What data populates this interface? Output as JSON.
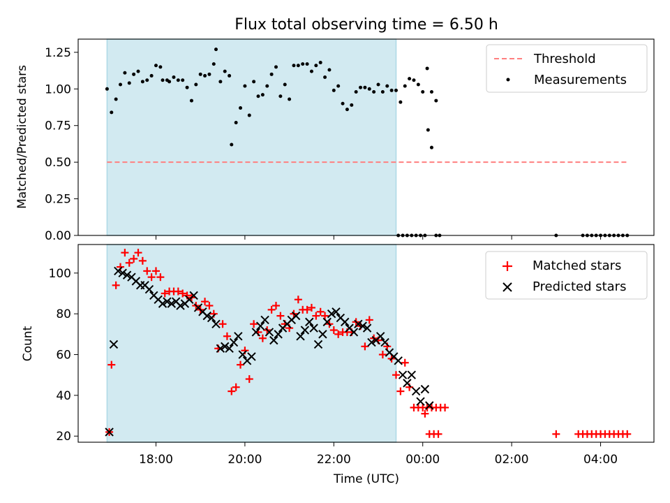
{
  "title": "Flux total observing time = 6.50 h",
  "xlabel": "Time (UTC)",
  "x_ticks": [
    "18:00",
    "20:00",
    "22:00",
    "00:00",
    "02:00",
    "04:00"
  ],
  "colors": {
    "observing_window": "#add8e6",
    "threshold": "#ff7f7f",
    "measurements": "#000000",
    "matched": "#ff0000",
    "predicted": "#000000"
  },
  "chart_data": [
    {
      "type": "scatter",
      "ylabel": "Matched/Predicted stars",
      "xlim": [
        16.25,
        29.2
      ],
      "ylim": [
        0.0,
        1.34
      ],
      "yticks": [
        "0.00",
        "0.25",
        "0.50",
        "0.75",
        "1.00",
        "1.25"
      ],
      "legend": "top-right",
      "shaded_span": [
        16.9,
        23.4
      ],
      "threshold": {
        "name": "Threshold",
        "y": 0.5,
        "x_range": [
          16.9,
          28.6
        ],
        "style": "dashed"
      },
      "series": [
        {
          "name": "Measurements",
          "marker": "dot",
          "points": [
            [
              16.9,
              1.0
            ],
            [
              17.0,
              0.84
            ],
            [
              17.1,
              0.93
            ],
            [
              17.2,
              1.03
            ],
            [
              17.3,
              1.11
            ],
            [
              17.4,
              1.04
            ],
            [
              17.5,
              1.1
            ],
            [
              17.6,
              1.12
            ],
            [
              17.7,
              1.05
            ],
            [
              17.8,
              1.06
            ],
            [
              17.9,
              1.09
            ],
            [
              18.0,
              1.16
            ],
            [
              18.1,
              1.15
            ],
            [
              18.15,
              1.06
            ],
            [
              18.25,
              1.06
            ],
            [
              18.3,
              1.05
            ],
            [
              18.4,
              1.08
            ],
            [
              18.5,
              1.06
            ],
            [
              18.6,
              1.06
            ],
            [
              18.7,
              1.01
            ],
            [
              18.8,
              0.92
            ],
            [
              18.9,
              1.03
            ],
            [
              19.0,
              1.1
            ],
            [
              19.1,
              1.09
            ],
            [
              19.2,
              1.1
            ],
            [
              19.3,
              1.17
            ],
            [
              19.35,
              1.27
            ],
            [
              19.45,
              1.05
            ],
            [
              19.55,
              1.12
            ],
            [
              19.65,
              1.09
            ],
            [
              19.7,
              0.62
            ],
            [
              19.8,
              0.77
            ],
            [
              19.9,
              0.87
            ],
            [
              20.0,
              1.02
            ],
            [
              20.1,
              0.82
            ],
            [
              20.2,
              1.05
            ],
            [
              20.3,
              0.95
            ],
            [
              20.4,
              0.96
            ],
            [
              20.5,
              1.02
            ],
            [
              20.6,
              1.1
            ],
            [
              20.7,
              1.15
            ],
            [
              20.8,
              0.95
            ],
            [
              20.9,
              1.03
            ],
            [
              21.0,
              0.93
            ],
            [
              21.1,
              1.16
            ],
            [
              21.2,
              1.16
            ],
            [
              21.3,
              1.17
            ],
            [
              21.4,
              1.17
            ],
            [
              21.5,
              1.12
            ],
            [
              21.6,
              1.16
            ],
            [
              21.7,
              1.18
            ],
            [
              21.8,
              1.08
            ],
            [
              21.9,
              1.13
            ],
            [
              22.0,
              0.99
            ],
            [
              22.1,
              1.02
            ],
            [
              22.2,
              0.9
            ],
            [
              22.3,
              0.86
            ],
            [
              22.4,
              0.89
            ],
            [
              22.5,
              0.98
            ],
            [
              22.6,
              1.01
            ],
            [
              22.7,
              1.01
            ],
            [
              22.8,
              1.0
            ],
            [
              22.9,
              0.98
            ],
            [
              23.0,
              1.03
            ],
            [
              23.1,
              0.98
            ],
            [
              23.2,
              1.02
            ],
            [
              23.3,
              0.99
            ],
            [
              23.4,
              0.99
            ],
            [
              23.5,
              0.91
            ],
            [
              23.6,
              1.02
            ],
            [
              23.7,
              1.07
            ],
            [
              23.8,
              1.06
            ],
            [
              23.9,
              1.03
            ],
            [
              24.0,
              0.98
            ],
            [
              24.1,
              1.14
            ],
            [
              24.2,
              0.98
            ],
            [
              24.3,
              0.92
            ],
            [
              23.45,
              0.0
            ],
            [
              23.55,
              0.0
            ],
            [
              23.65,
              0.0
            ],
            [
              23.75,
              0.0
            ],
            [
              23.85,
              0.0
            ],
            [
              23.95,
              0.0
            ],
            [
              24.05,
              0.0
            ],
            [
              24.12,
              0.72
            ],
            [
              24.2,
              0.6
            ],
            [
              24.3,
              0.0
            ],
            [
              24.38,
              0.0
            ],
            [
              27.0,
              0.0
            ],
            [
              27.6,
              0.0
            ],
            [
              27.7,
              0.0
            ],
            [
              27.8,
              0.0
            ],
            [
              27.9,
              0.0
            ],
            [
              28.0,
              0.0
            ],
            [
              28.1,
              0.0
            ],
            [
              28.2,
              0.0
            ],
            [
              28.3,
              0.0
            ],
            [
              28.4,
              0.0
            ],
            [
              28.5,
              0.0
            ],
            [
              28.6,
              0.0
            ]
          ]
        }
      ]
    },
    {
      "type": "scatter",
      "ylabel": "Count",
      "xlim": [
        16.25,
        29.2
      ],
      "ylim": [
        17,
        114
      ],
      "yticks": [
        "20",
        "40",
        "60",
        "80",
        "100"
      ],
      "legend": "top-right",
      "shaded_span": [
        16.9,
        23.4
      ],
      "series": [
        {
          "name": "Matched stars",
          "marker": "plus",
          "points": [
            [
              16.95,
              22
            ],
            [
              17.0,
              55
            ],
            [
              17.1,
              94
            ],
            [
              17.2,
              103
            ],
            [
              17.3,
              110
            ],
            [
              17.4,
              105
            ],
            [
              17.5,
              107
            ],
            [
              17.6,
              110
            ],
            [
              17.7,
              106
            ],
            [
              17.8,
              101
            ],
            [
              17.9,
              98
            ],
            [
              18.0,
              101
            ],
            [
              18.1,
              98
            ],
            [
              18.2,
              90
            ],
            [
              18.3,
              91
            ],
            [
              18.4,
              91
            ],
            [
              18.5,
              91
            ],
            [
              18.6,
              90
            ],
            [
              18.7,
              89
            ],
            [
              18.8,
              88
            ],
            [
              18.9,
              84
            ],
            [
              19.0,
              82
            ],
            [
              19.1,
              86
            ],
            [
              19.2,
              84
            ],
            [
              19.3,
              80
            ],
            [
              19.4,
              63
            ],
            [
              19.5,
              75
            ],
            [
              19.6,
              69
            ],
            [
              19.7,
              42
            ],
            [
              19.8,
              44
            ],
            [
              19.9,
              55
            ],
            [
              20.0,
              62
            ],
            [
              20.1,
              48
            ],
            [
              20.2,
              75
            ],
            [
              20.3,
              71
            ],
            [
              20.4,
              68
            ],
            [
              20.5,
              72
            ],
            [
              20.6,
              82
            ],
            [
              20.7,
              84
            ],
            [
              20.8,
              79
            ],
            [
              20.9,
              75
            ],
            [
              21.0,
              73
            ],
            [
              21.1,
              80
            ],
            [
              21.2,
              87
            ],
            [
              21.3,
              82
            ],
            [
              21.4,
              82
            ],
            [
              21.5,
              83
            ],
            [
              21.6,
              79
            ],
            [
              21.7,
              81
            ],
            [
              21.8,
              79
            ],
            [
              21.9,
              75
            ],
            [
              22.0,
              72
            ],
            [
              22.1,
              70
            ],
            [
              22.2,
              71
            ],
            [
              22.3,
              71
            ],
            [
              22.4,
              71
            ],
            [
              22.5,
              76
            ],
            [
              22.6,
              74
            ],
            [
              22.7,
              64
            ],
            [
              22.8,
              77
            ],
            [
              22.9,
              68
            ],
            [
              23.0,
              67
            ],
            [
              23.1,
              60
            ],
            [
              23.2,
              64
            ],
            [
              23.3,
              58
            ],
            [
              23.4,
              50
            ],
            [
              23.5,
              42
            ],
            [
              23.6,
              56
            ],
            [
              23.7,
              44
            ],
            [
              23.8,
              34
            ],
            [
              23.9,
              34
            ],
            [
              24.0,
              34
            ],
            [
              24.1,
              34
            ],
            [
              24.2,
              34
            ],
            [
              24.3,
              34
            ],
            [
              24.4,
              34
            ],
            [
              24.5,
              34
            ],
            [
              24.05,
              31
            ],
            [
              24.15,
              21
            ],
            [
              24.25,
              21
            ],
            [
              24.35,
              21
            ],
            [
              27.0,
              21
            ],
            [
              27.5,
              21
            ],
            [
              27.6,
              21
            ],
            [
              27.7,
              21
            ],
            [
              27.8,
              21
            ],
            [
              27.9,
              21
            ],
            [
              28.0,
              21
            ],
            [
              28.1,
              21
            ],
            [
              28.2,
              21
            ],
            [
              28.3,
              21
            ],
            [
              28.4,
              21
            ],
            [
              28.5,
              21
            ],
            [
              28.6,
              21
            ]
          ]
        },
        {
          "name": "Predicted stars",
          "marker": "x",
          "points": [
            [
              16.95,
              22
            ],
            [
              17.05,
              65
            ],
            [
              17.15,
              101
            ],
            [
              17.25,
              100
            ],
            [
              17.35,
              99
            ],
            [
              17.45,
              98
            ],
            [
              17.55,
              96
            ],
            [
              17.65,
              94
            ],
            [
              17.75,
              94
            ],
            [
              17.85,
              92
            ],
            [
              17.95,
              89
            ],
            [
              18.05,
              87
            ],
            [
              18.15,
              85
            ],
            [
              18.25,
              86
            ],
            [
              18.35,
              85
            ],
            [
              18.45,
              86
            ],
            [
              18.55,
              84
            ],
            [
              18.65,
              85
            ],
            [
              18.75,
              87
            ],
            [
              18.85,
              89
            ],
            [
              18.95,
              83
            ],
            [
              19.05,
              81
            ],
            [
              19.15,
              79
            ],
            [
              19.25,
              78
            ],
            [
              19.35,
              75
            ],
            [
              19.45,
              63
            ],
            [
              19.55,
              64
            ],
            [
              19.65,
              63
            ],
            [
              19.75,
              66
            ],
            [
              19.85,
              69
            ],
            [
              19.95,
              60
            ],
            [
              20.05,
              57
            ],
            [
              20.15,
              59
            ],
            [
              20.25,
              71
            ],
            [
              20.35,
              74
            ],
            [
              20.45,
              77
            ],
            [
              20.55,
              71
            ],
            [
              20.65,
              67
            ],
            [
              20.75,
              70
            ],
            [
              20.85,
              73
            ],
            [
              20.95,
              75
            ],
            [
              21.05,
              77
            ],
            [
              21.15,
              79
            ],
            [
              21.25,
              69
            ],
            [
              21.35,
              72
            ],
            [
              21.45,
              76
            ],
            [
              21.55,
              73
            ],
            [
              21.65,
              65
            ],
            [
              21.75,
              70
            ],
            [
              21.85,
              76
            ],
            [
              21.95,
              80
            ],
            [
              22.05,
              81
            ],
            [
              22.15,
              78
            ],
            [
              22.25,
              76
            ],
            [
              22.35,
              73
            ],
            [
              22.45,
              71
            ],
            [
              22.55,
              75
            ],
            [
              22.65,
              74
            ],
            [
              22.75,
              73
            ],
            [
              22.85,
              66
            ],
            [
              22.95,
              67
            ],
            [
              23.05,
              69
            ],
            [
              23.15,
              66
            ],
            [
              23.25,
              61
            ],
            [
              23.35,
              59
            ],
            [
              23.45,
              57
            ],
            [
              23.55,
              50
            ],
            [
              23.65,
              46
            ],
            [
              23.75,
              50
            ],
            [
              23.85,
              42
            ],
            [
              23.95,
              37
            ],
            [
              24.05,
              43
            ],
            [
              24.15,
              35
            ]
          ]
        }
      ]
    }
  ]
}
